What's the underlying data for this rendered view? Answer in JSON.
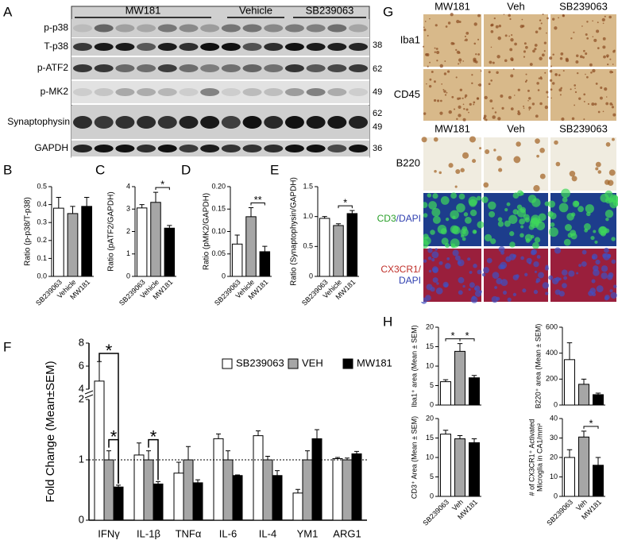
{
  "panel_labels": [
    "A",
    "B",
    "C",
    "D",
    "E",
    "F",
    "G",
    "H"
  ],
  "blot": {
    "groups": [
      "MW181",
      "Vehicle",
      "SB239063"
    ],
    "rows": [
      "p-p38",
      "T-p38",
      "p-ATF2",
      "p-MK2",
      "Synaptophysin",
      "GAPDH"
    ],
    "markers": [
      "38",
      "62",
      "49",
      "62",
      "49",
      "36"
    ]
  },
  "images": {
    "columns_top": [
      "MW181",
      "Veh",
      "SB239063"
    ],
    "rows_top": [
      "Iba1",
      "CD45"
    ],
    "columns_bottom": [
      "MW181",
      "Veh",
      "SB239063"
    ],
    "rows_bottom": [
      "B220",
      [
        "CD3",
        "/DAPI"
      ],
      [
        "CX3CR1/",
        "DAPI"
      ]
    ]
  },
  "chart_data": [
    {
      "type": "bar",
      "ylabel": "Ratio (p-p38/T-p38)",
      "categories": [
        "SB239063",
        "Vehicle",
        "MW181"
      ],
      "values": [
        0.38,
        0.35,
        0.39
      ],
      "errors": [
        0.06,
        0.04,
        0.05
      ],
      "colors": [
        "#ffffff",
        "#a6a6a6",
        "#000000"
      ],
      "ylim": [
        0,
        0.5
      ],
      "yticks": [
        {
          "value": 0,
          "label": "0.0"
        },
        0.1,
        0.2,
        0.3,
        0.4,
        0.5
      ],
      "significance": []
    },
    {
      "type": "bar",
      "ylabel": "Ratio (pATF2/GAPDH)",
      "categories": [
        "SB239063",
        "Vehicle",
        "MW181"
      ],
      "values": [
        3.05,
        3.3,
        2.15
      ],
      "errors": [
        0.15,
        0.45,
        0.12
      ],
      "colors": [
        "#ffffff",
        "#a6a6a6",
        "#000000"
      ],
      "ylim": [
        0,
        4
      ],
      "yticks": [
        0,
        1,
        2,
        3,
        4
      ],
      "significance": [
        {
          "label": "*",
          "pair": [
            1,
            2
          ]
        }
      ]
    },
    {
      "type": "bar",
      "ylabel": "Ratio (pMK2/GAPDH)",
      "categories": [
        "SB239063",
        "Vehicle",
        "MW181"
      ],
      "values": [
        0.072,
        0.133,
        0.055
      ],
      "errors": [
        0.02,
        0.02,
        0.012
      ],
      "colors": [
        "#ffffff",
        "#a6a6a6",
        "#000000"
      ],
      "ylim": [
        0,
        0.2
      ],
      "yticks": [
        0,
        0.05,
        {
          "value": 0.1,
          "label": "0.10"
        },
        0.15,
        {
          "value": 0.2,
          "label": "0.20"
        }
      ],
      "significance": [
        {
          "label": "**",
          "pair": [
            1,
            2
          ]
        }
      ]
    },
    {
      "type": "bar",
      "ylabel": "Ratio (Synaptophysin/GAPDH)",
      "categories": [
        "SB239063",
        "Vehicle",
        "MW181"
      ],
      "values": [
        0.97,
        0.85,
        1.05
      ],
      "errors": [
        0.03,
        0.03,
        0.05
      ],
      "colors": [
        "#ffffff",
        "#a6a6a6",
        "#000000"
      ],
      "ylim": [
        0,
        1.5
      ],
      "yticks": [
        0,
        0.5,
        {
          "value": 1,
          "label": "1.0"
        },
        1.5
      ],
      "significance": [
        {
          "label": "*",
          "pair": [
            1,
            2
          ]
        }
      ]
    },
    {
      "type": "grouped_bar",
      "ylabel": "Fold Change (Mean±SEM)",
      "categories": [
        "IFNγ",
        "IL-1β",
        "TNFα",
        "IL-6",
        "IL-4",
        "YM1",
        "ARG1"
      ],
      "series": [
        {
          "name": "SB239063",
          "color": "#ffffff",
          "values": [
            4.7,
            1.08,
            0.78,
            1.35,
            1.4,
            0.45,
            1.02
          ],
          "errors": [
            1.7,
            0.2,
            0.18,
            0.08,
            0.08,
            0.06,
            0.02
          ]
        },
        {
          "name": "VEH",
          "color": "#a6a6a6",
          "values": [
            1,
            1,
            1,
            1,
            1,
            1,
            1
          ],
          "errors": [
            0.15,
            0.15,
            0.22,
            0.15,
            0.06,
            0.15,
            0.03
          ]
        },
        {
          "name": "MW181",
          "color": "#000000",
          "values": [
            0.55,
            0.6,
            0.62,
            0.74,
            0.74,
            1.35,
            1.1
          ],
          "errors": [
            0.03,
            0.04,
            0.05,
            0.01,
            0.08,
            0.15,
            0.04
          ]
        }
      ],
      "ylim": [
        0,
        8
      ],
      "axis_break": [
        2,
        4
      ],
      "yticks": [
        0,
        1,
        2,
        4,
        6,
        8
      ],
      "reference_line": 1,
      "significance": [
        {
          "label": "*",
          "category": 0,
          "pair": [
            0,
            2
          ]
        },
        {
          "label": "*",
          "category": 0,
          "pair": [
            1,
            2
          ]
        },
        {
          "label": "*",
          "category": 1,
          "pair": [
            1,
            2
          ]
        }
      ]
    },
    {
      "type": "bar",
      "ylabel": "Iba1⁺ area (Mean ± SEM)",
      "categories": [
        null,
        null,
        null
      ],
      "values": [
        6,
        13.8,
        7
      ],
      "errors": [
        0.5,
        2,
        0.6
      ],
      "colors": [
        "#ffffff",
        "#a6a6a6",
        "#000000"
      ],
      "ylim": [
        0,
        20
      ],
      "yticks": [
        0,
        5,
        10,
        15,
        20
      ],
      "significance": [
        {
          "label": "*",
          "pair": [
            0,
            1
          ]
        },
        {
          "label": "*",
          "pair": [
            1,
            2
          ]
        }
      ]
    },
    {
      "type": "bar",
      "ylabel": "B220⁺ area (Mean ± SEM)",
      "categories": [
        null,
        null,
        null
      ],
      "values": [
        350,
        160,
        80
      ],
      "errors": [
        130,
        40,
        12
      ],
      "colors": [
        "#ffffff",
        "#a6a6a6",
        "#000000"
      ],
      "ylim": [
        0,
        600
      ],
      "yticks": [
        0,
        200,
        400,
        600
      ],
      "significance": []
    },
    {
      "type": "bar",
      "ylabel": "CD3⁺ Area (Mean ± SEM)",
      "categories": [
        "SB239063",
        "Veh",
        "MW181"
      ],
      "values": [
        16,
        14.8,
        13.8
      ],
      "errors": [
        1,
        0.8,
        1
      ],
      "colors": [
        "#ffffff",
        "#a6a6a6",
        "#000000"
      ],
      "ylim": [
        0,
        20
      ],
      "yticks": [
        0,
        5,
        10,
        15,
        20
      ],
      "significance": []
    },
    {
      "type": "bar",
      "ylabel": [
        "# of CX3CR1⁺ Activated",
        "Microglia in CA1/mm²"
      ],
      "categories": [
        "SB239063",
        "Veh",
        "MW181"
      ],
      "values": [
        20,
        30.5,
        16
      ],
      "errors": [
        4,
        3,
        4
      ],
      "colors": [
        "#ffffff",
        "#a6a6a6",
        "#000000"
      ],
      "ylim": [
        0,
        40
      ],
      "yticks": [
        0,
        10,
        20,
        30,
        40
      ],
      "significance": [
        {
          "label": "*",
          "pair": [
            1,
            2
          ]
        }
      ]
    }
  ]
}
